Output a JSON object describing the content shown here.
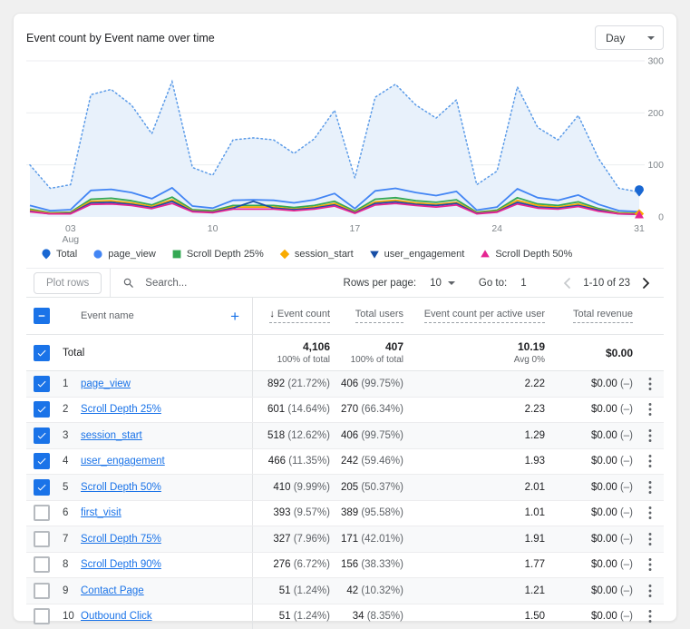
{
  "card": {
    "title": "Event count by Event name over time"
  },
  "granularity": {
    "value": "Day"
  },
  "icons": {
    "plus": "+",
    "sort_desc": "↓"
  },
  "chart_data": {
    "type": "area",
    "title": "Event count by Event name over time",
    "x_label": "Aug",
    "x_days": [
      1,
      2,
      3,
      4,
      5,
      6,
      7,
      8,
      9,
      10,
      11,
      12,
      13,
      14,
      15,
      16,
      17,
      18,
      19,
      20,
      21,
      22,
      23,
      24,
      25,
      26,
      27,
      28,
      29,
      30,
      31
    ],
    "x_tick_days": [
      3,
      10,
      17,
      24,
      31
    ],
    "x_tick_labels": [
      "03",
      "10",
      "17",
      "24",
      "31"
    ],
    "month_label": "Aug",
    "ylim": [
      0,
      300
    ],
    "y_ticks": [
      0,
      100,
      200,
      300
    ],
    "legend_position": "bottom",
    "series": [
      {
        "name": "Total",
        "marker": "pin",
        "color": "#5b9be8",
        "fill": "#e8f1fb",
        "style": "dotted-area",
        "values": [
          100,
          55,
          62,
          235,
          245,
          215,
          160,
          260,
          95,
          80,
          148,
          152,
          148,
          122,
          150,
          205,
          75,
          230,
          255,
          215,
          190,
          225,
          62,
          88,
          250,
          172,
          148,
          195,
          112,
          55,
          48
        ]
      },
      {
        "name": "page_view",
        "marker": "circle",
        "color": "#4285f4",
        "style": "solid",
        "values": [
          22,
          12,
          14,
          51,
          53,
          47,
          35,
          56,
          21,
          17,
          32,
          33,
          32,
          27,
          33,
          45,
          16,
          50,
          55,
          47,
          41,
          49,
          13,
          19,
          54,
          37,
          32,
          42,
          24,
          12,
          10
        ]
      },
      {
        "name": "Scroll Depth 25%",
        "marker": "square",
        "color": "#34a853",
        "style": "solid",
        "values": [
          15,
          8,
          9,
          34,
          36,
          31,
          23,
          38,
          14,
          12,
          22,
          22,
          22,
          18,
          22,
          30,
          11,
          34,
          37,
          31,
          28,
          33,
          9,
          13,
          37,
          25,
          22,
          29,
          16,
          8,
          7
        ]
      },
      {
        "name": "session_start",
        "marker": "diamond",
        "color": "#f9ab00",
        "style": "solid",
        "values": [
          13,
          7,
          8,
          30,
          31,
          27,
          20,
          33,
          12,
          10,
          19,
          19,
          19,
          15,
          19,
          26,
          9,
          29,
          32,
          27,
          24,
          28,
          8,
          11,
          32,
          22,
          19,
          25,
          14,
          7,
          6
        ]
      },
      {
        "name": "user_engagement",
        "marker": "triangle-down",
        "color": "#174ea6",
        "style": "solid",
        "values": [
          11,
          6,
          7,
          27,
          28,
          24,
          18,
          30,
          11,
          9,
          17,
          30,
          17,
          14,
          17,
          23,
          8,
          26,
          29,
          24,
          22,
          26,
          7,
          10,
          28,
          19,
          17,
          22,
          13,
          6,
          5
        ]
      },
      {
        "name": "Scroll Depth 50%",
        "marker": "triangle-up",
        "color": "#e52592",
        "style": "solid",
        "values": [
          10,
          6,
          6,
          24,
          25,
          22,
          16,
          26,
          10,
          8,
          15,
          15,
          15,
          12,
          15,
          21,
          7,
          23,
          26,
          22,
          19,
          23,
          6,
          9,
          25,
          17,
          15,
          20,
          11,
          6,
          5
        ]
      }
    ]
  },
  "toolbar": {
    "plot_rows_label": "Plot rows",
    "search_placeholder": "Search...",
    "rows_per_page_label": "Rows per page:",
    "rows_per_page_value": "10",
    "goto_label": "Go to:",
    "goto_value": "1",
    "range_label": "1-10 of 23"
  },
  "table": {
    "name_header": "Event name",
    "columns": [
      "Event count",
      "Total users",
      "Event count per active user",
      "Total revenue"
    ],
    "sorted_by": "Event count",
    "total_row": {
      "label": "Total",
      "event_count": "4,106",
      "event_count_sub": "100% of total",
      "total_users": "407",
      "total_users_sub": "100% of total",
      "per_active_user": "10.19",
      "per_active_user_sub": "Avg 0%",
      "total_revenue": "$0.00"
    },
    "rows": [
      {
        "num": "1",
        "checked": true,
        "name": "page_view",
        "event_count": "892",
        "event_count_pct": "(21.72%)",
        "total_users": "406",
        "total_users_pct": "(99.75%)",
        "per_active_user": "2.22",
        "total_revenue": "$0.00",
        "total_revenue_pct": "(–)"
      },
      {
        "num": "2",
        "checked": true,
        "name": "Scroll Depth 25%",
        "event_count": "601",
        "event_count_pct": "(14.64%)",
        "total_users": "270",
        "total_users_pct": "(66.34%)",
        "per_active_user": "2.23",
        "total_revenue": "$0.00",
        "total_revenue_pct": "(–)"
      },
      {
        "num": "3",
        "checked": true,
        "name": "session_start",
        "event_count": "518",
        "event_count_pct": "(12.62%)",
        "total_users": "406",
        "total_users_pct": "(99.75%)",
        "per_active_user": "1.29",
        "total_revenue": "$0.00",
        "total_revenue_pct": "(–)"
      },
      {
        "num": "4",
        "checked": true,
        "name": "user_engagement",
        "event_count": "466",
        "event_count_pct": "(11.35%)",
        "total_users": "242",
        "total_users_pct": "(59.46%)",
        "per_active_user": "1.93",
        "total_revenue": "$0.00",
        "total_revenue_pct": "(–)"
      },
      {
        "num": "5",
        "checked": true,
        "name": "Scroll Depth 50%",
        "event_count": "410",
        "event_count_pct": "(9.99%)",
        "total_users": "205",
        "total_users_pct": "(50.37%)",
        "per_active_user": "2.01",
        "total_revenue": "$0.00",
        "total_revenue_pct": "(–)"
      },
      {
        "num": "6",
        "checked": false,
        "name": "first_visit",
        "event_count": "393",
        "event_count_pct": "(9.57%)",
        "total_users": "389",
        "total_users_pct": "(95.58%)",
        "per_active_user": "1.01",
        "total_revenue": "$0.00",
        "total_revenue_pct": "(–)"
      },
      {
        "num": "7",
        "checked": false,
        "name": "Scroll Depth 75%",
        "event_count": "327",
        "event_count_pct": "(7.96%)",
        "total_users": "171",
        "total_users_pct": "(42.01%)",
        "per_active_user": "1.91",
        "total_revenue": "$0.00",
        "total_revenue_pct": "(–)"
      },
      {
        "num": "8",
        "checked": false,
        "name": "Scroll Depth 90%",
        "event_count": "276",
        "event_count_pct": "(6.72%)",
        "total_users": "156",
        "total_users_pct": "(38.33%)",
        "per_active_user": "1.77",
        "total_revenue": "$0.00",
        "total_revenue_pct": "(–)"
      },
      {
        "num": "9",
        "checked": false,
        "name": "Contact Page",
        "event_count": "51",
        "event_count_pct": "(1.24%)",
        "total_users": "42",
        "total_users_pct": "(10.32%)",
        "per_active_user": "1.21",
        "total_revenue": "$0.00",
        "total_revenue_pct": "(–)"
      },
      {
        "num": "10",
        "checked": false,
        "name": "Outbound Click",
        "event_count": "51",
        "event_count_pct": "(1.24%)",
        "total_users": "34",
        "total_users_pct": "(8.35%)",
        "per_active_user": "1.50",
        "total_revenue": "$0.00",
        "total_revenue_pct": "(–)"
      }
    ]
  }
}
